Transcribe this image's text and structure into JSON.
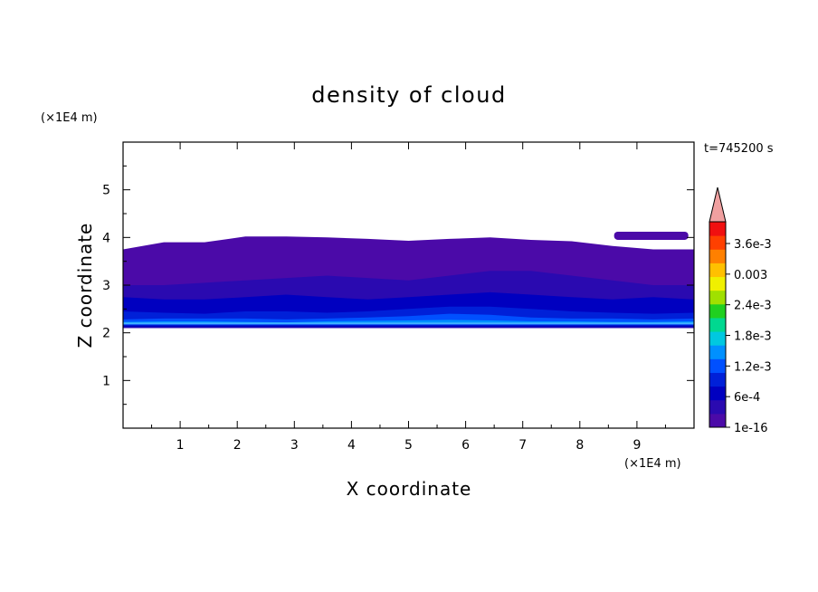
{
  "chart_data": {
    "type": "contour",
    "title": "density of cloud",
    "xlabel": "X coordinate",
    "ylabel": "Z coordinate",
    "x_unit": "(×1E4 m)",
    "y_unit": "(×1E4 m)",
    "time_label": "t=745200 s",
    "xlim": [
      0,
      10
    ],
    "ylim": [
      0,
      6
    ],
    "xticks": [
      1,
      2,
      3,
      4,
      5,
      6,
      7,
      8,
      9
    ],
    "yticks": [
      1,
      2,
      3,
      4,
      5
    ],
    "colorbar": {
      "labels": [
        "3.6e-3",
        "0.003",
        "2.4e-3",
        "1.8e-3",
        "1.2e-3",
        "6e-4",
        "1e-16"
      ],
      "colors": [
        "#4b0aa8",
        "#2a0ab0",
        "#0000c0",
        "#0020d8",
        "#0050ff",
        "#0090ff",
        "#00c8e0",
        "#00d890",
        "#20d020",
        "#a0e000",
        "#f0f000",
        "#ffc000",
        "#ff8000",
        "#ff4000",
        "#f01010"
      ],
      "extend_color": "#f0a0a0"
    },
    "bands": [
      {
        "level": "1e-16",
        "color": "#4b0aa8",
        "bottom": 2.1,
        "top": [
          3.75,
          3.9,
          3.9,
          4.02,
          4.02,
          4.0,
          3.97,
          3.93,
          3.97,
          4.0,
          3.95,
          3.92,
          3.82,
          3.75,
          3.75
        ]
      },
      {
        "level": "3e-4",
        "color": "#2a0ab0",
        "bottom": 2.1,
        "top": [
          3.0,
          3.0,
          3.05,
          3.1,
          3.15,
          3.2,
          3.15,
          3.1,
          3.2,
          3.3,
          3.3,
          3.2,
          3.1,
          3.0,
          3.0
        ]
      },
      {
        "level": "6e-4",
        "color": "#0000c0",
        "bottom": 2.12,
        "top": [
          2.75,
          2.7,
          2.7,
          2.75,
          2.8,
          2.75,
          2.7,
          2.75,
          2.8,
          2.85,
          2.8,
          2.75,
          2.7,
          2.75,
          2.7
        ]
      },
      {
        "level": "9e-4",
        "color": "#0020d8",
        "bottom": 2.15,
        "top": [
          2.45,
          2.42,
          2.4,
          2.45,
          2.45,
          2.42,
          2.45,
          2.5,
          2.55,
          2.55,
          2.5,
          2.45,
          2.42,
          2.4,
          2.42
        ]
      },
      {
        "level": "1.2e-3",
        "color": "#0050ff",
        "bottom": 2.17,
        "top": [
          2.28,
          2.3,
          2.3,
          2.3,
          2.28,
          2.3,
          2.32,
          2.35,
          2.4,
          2.38,
          2.32,
          2.3,
          2.3,
          2.28,
          2.3
        ]
      },
      {
        "level": "1.5e-3",
        "color": "#0090ff",
        "bottom": 2.19,
        "top": [
          2.23,
          2.24,
          2.24,
          2.23,
          2.22,
          2.24,
          2.25,
          2.26,
          2.27,
          2.26,
          2.24,
          2.24,
          2.23,
          2.23,
          2.24
        ]
      }
    ],
    "upper_patch": {
      "level": "1e-16",
      "color": "#4b0aa8",
      "x": [
        8.6,
        9.9
      ],
      "z": [
        3.95,
        4.12
      ]
    }
  }
}
